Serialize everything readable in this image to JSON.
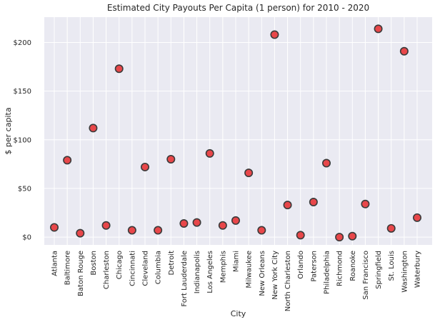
{
  "chart_data": {
    "type": "scatter",
    "title": "Estimated City Payouts Per Capita (1 person) for 2010 - 2020",
    "xlabel": "City",
    "ylabel": "$ per capita",
    "categories": [
      "Atlanta",
      "Baltimore",
      "Baton Rouge",
      "Boston",
      "Charleston",
      "Chicago",
      "Cincinnati",
      "Cleveland",
      "Columbia",
      "Detroit",
      "Fort Lauderdale",
      "Indianapolis",
      "Los Angeles",
      "Memphis",
      "Miami",
      "Milwaukee",
      "New Orleans",
      "New York City",
      "North Charleston",
      "Orlando",
      "Paterson",
      "Philadelphia",
      "Richmond",
      "Roanoke",
      "San Francisco",
      "Springfield",
      "St. Louis",
      "Washington",
      "Waterbury"
    ],
    "values": [
      10,
      79,
      4,
      112,
      12,
      173,
      7,
      72,
      7,
      80,
      14,
      15,
      86,
      12,
      17,
      66,
      7,
      208,
      33,
      2,
      36,
      76,
      0,
      1,
      34,
      214,
      9,
      191,
      20
    ],
    "ylim": [
      -8,
      226
    ],
    "yticks": [
      0,
      50,
      100,
      150,
      200
    ],
    "ytick_labels": [
      "$0",
      "$50",
      "$100",
      "$150",
      "$200"
    ],
    "grid": true,
    "marker_color": "#e8474a",
    "marker_edge": "#3a3a3a",
    "background": "#eaeaf2"
  }
}
